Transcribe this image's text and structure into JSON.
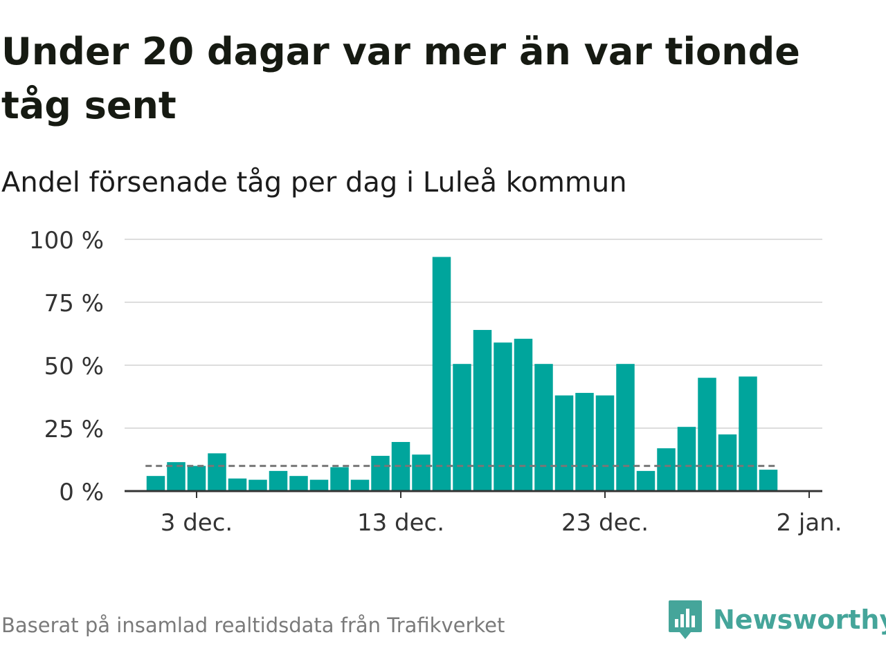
{
  "header": {
    "title": "Under 20 dagar var mer än var tionde tåg sent",
    "subtitle": "Andel försenade tåg per dag i Luleå kommun"
  },
  "footer": {
    "source": "Baserat på insamlad realtidsdata från Trafikverket",
    "brand": "Newsworthy",
    "brand_icon": "newsworthy-logo-icon"
  },
  "colors": {
    "bar": "#00a59c",
    "reference_line": "#777777",
    "grid": "#dddddd",
    "axis": "#333333",
    "brand": "#45a59a"
  },
  "chart_data": {
    "type": "bar",
    "x_unit": "date",
    "x": [
      "2020-12-01",
      "2020-12-02",
      "2020-12-03",
      "2020-12-04",
      "2020-12-05",
      "2020-12-06",
      "2020-12-07",
      "2020-12-08",
      "2020-12-09",
      "2020-12-10",
      "2020-12-11",
      "2020-12-12",
      "2020-12-13",
      "2020-12-14",
      "2020-12-15",
      "2020-12-16",
      "2020-12-17",
      "2020-12-18",
      "2020-12-19",
      "2020-12-20",
      "2020-12-21",
      "2020-12-22",
      "2020-12-23",
      "2020-12-24",
      "2020-12-25",
      "2020-12-26",
      "2020-12-27",
      "2020-12-28",
      "2020-12-29",
      "2020-12-30",
      "2020-12-31"
    ],
    "series": [
      {
        "values": [
          6,
          11.5,
          10,
          15,
          5,
          4.5,
          8,
          6,
          4.5,
          9.5,
          4.5,
          14,
          19.5,
          14.5,
          93,
          50.5,
          64,
          59,
          60.5,
          50.5,
          38,
          39,
          38,
          50.5,
          8,
          17,
          25.5,
          45,
          22.5,
          45.5,
          8.5
        ]
      }
    ],
    "reference_line": {
      "value": 10,
      "style": "dashed"
    },
    "ylim": [
      0,
      100
    ],
    "y_ticks": [
      0,
      25,
      50,
      75,
      100
    ],
    "y_tick_labels": [
      "0 %",
      "25 %",
      "50 %",
      "75 %",
      "100 %"
    ],
    "x_ticks": [
      "2020-12-03",
      "2020-12-13",
      "2020-12-23",
      "2021-01-02"
    ],
    "x_tick_labels": [
      "3 dec.",
      "13 dec.",
      "23 dec.",
      "2 jan."
    ],
    "grid": true,
    "legend": "none",
    "title": "Under 20 dagar var mer än var tionde tåg sent",
    "subtitle": "Andel försenade tåg per dag i Luleå kommun",
    "xlabel": "",
    "ylabel": ""
  }
}
